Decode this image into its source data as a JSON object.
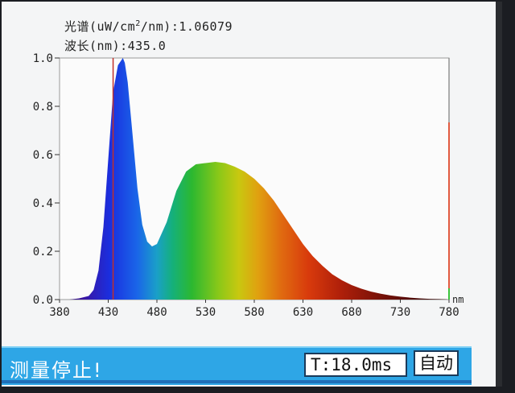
{
  "readouts": {
    "spectrum_label": "光谱(uW/cm",
    "spectrum_sup": "2",
    "spectrum_tail": "/nm):",
    "spectrum_value": "1.06079",
    "wavelength_label": "波长(nm):",
    "wavelength_value": "435.0"
  },
  "status": {
    "message": "测量停止!",
    "time": "T:18.0ms",
    "mode": "自动"
  },
  "chart_data": {
    "type": "area",
    "x_unit_label": "nm",
    "xlim": [
      380,
      780
    ],
    "ylim": [
      0,
      1.0
    ],
    "x_ticks": [
      380,
      430,
      480,
      530,
      580,
      630,
      680,
      730,
      780
    ],
    "y_ticks": [
      "0.0",
      "0.2",
      "0.4",
      "0.6",
      "0.8",
      "1.0"
    ],
    "cursor_wavelength": 435.0,
    "series": [
      {
        "x": [
          380,
          390,
          400,
          410,
          415,
          420,
          425,
          430,
          435,
          440,
          445,
          447,
          450,
          455,
          460,
          465,
          470,
          475,
          480,
          490,
          500,
          510,
          520,
          530,
          540,
          550,
          560,
          570,
          580,
          590,
          600,
          610,
          620,
          630,
          640,
          650,
          660,
          670,
          680,
          690,
          700,
          710,
          720,
          730,
          740,
          750,
          760,
          770,
          778
        ],
        "values": [
          0.0,
          0.0,
          0.005,
          0.015,
          0.04,
          0.12,
          0.3,
          0.58,
          0.86,
          0.97,
          1.0,
          0.98,
          0.9,
          0.68,
          0.46,
          0.31,
          0.24,
          0.22,
          0.23,
          0.32,
          0.45,
          0.53,
          0.56,
          0.565,
          0.57,
          0.565,
          0.55,
          0.53,
          0.5,
          0.46,
          0.41,
          0.35,
          0.29,
          0.23,
          0.18,
          0.14,
          0.105,
          0.08,
          0.06,
          0.045,
          0.033,
          0.024,
          0.017,
          0.012,
          0.008,
          0.005,
          0.003,
          0.002,
          0.001
        ]
      }
    ]
  }
}
